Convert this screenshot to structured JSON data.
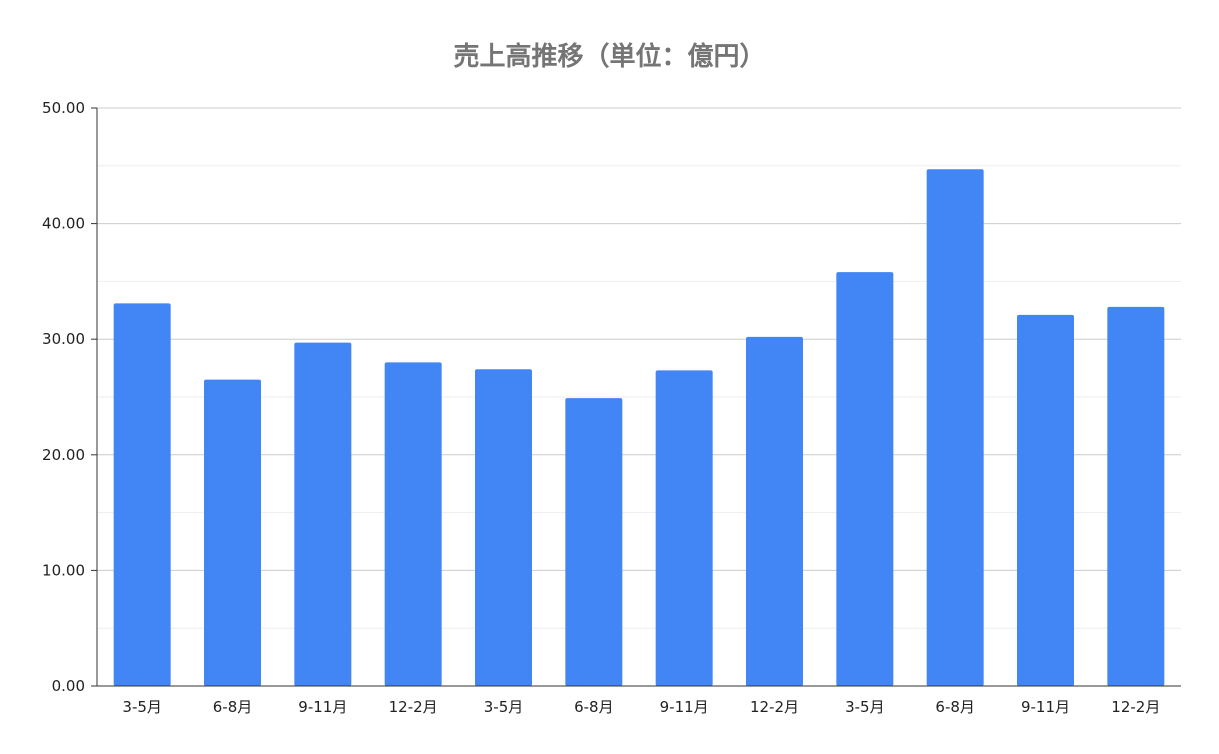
{
  "chart_data": {
    "type": "bar",
    "title": "売上高推移（単位：億円）",
    "xlabel": "",
    "ylabel": "",
    "categories": [
      "3-5月",
      "6-8月",
      "9-11月",
      "12-2月",
      "3-5月",
      "6-8月",
      "9-11月",
      "12-2月",
      "3-5月",
      "6-8月",
      "9-11月",
      "12-2月"
    ],
    "series": [
      {
        "values": [
          33.1,
          26.5,
          29.7,
          28.0,
          27.4,
          24.9,
          27.3,
          30.2,
          35.8,
          44.7,
          32.1,
          32.8
        ]
      }
    ],
    "yticks": [
      "0.00",
      "10.00",
      "20.00",
      "30.00",
      "40.00",
      "50.00"
    ],
    "ylim": [
      0,
      50
    ],
    "grid": true,
    "legend": "none",
    "colors": {
      "bar": "#4285F4",
      "title": "#757575",
      "axis": "#333333",
      "major_grid": "#cccccc",
      "minor_grid": "#eeeeee",
      "tick_label": "#222222"
    }
  }
}
